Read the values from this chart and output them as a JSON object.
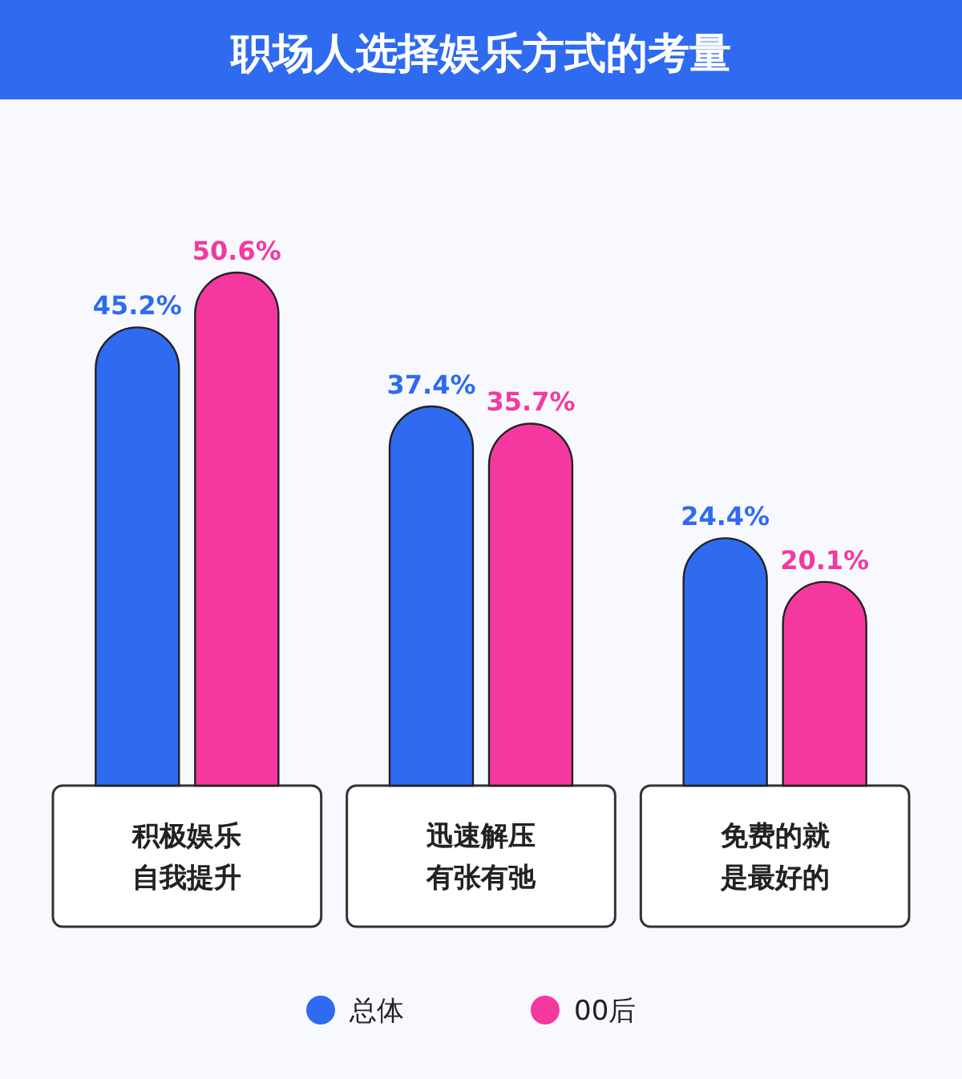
{
  "chart_data": {
    "type": "bar",
    "title": "职场人选择娱乐方式的考量",
    "categories": [
      "积极娱乐自我提升",
      "迅速解压有张有弛",
      "免费的就是最好的"
    ],
    "series": [
      {
        "name": "总体",
        "color": "#2f6bf0",
        "values": [
          45.2,
          37.4,
          24.4
        ],
        "value_labels": [
          "45.2%",
          "37.4%",
          "24.4%"
        ]
      },
      {
        "name": "00后",
        "color": "#f5389f",
        "values": [
          50.6,
          35.7,
          20.1
        ],
        "value_labels": [
          "50.6%",
          "35.7%",
          "20.1%"
        ]
      }
    ],
    "legend": "bottom"
  }
}
